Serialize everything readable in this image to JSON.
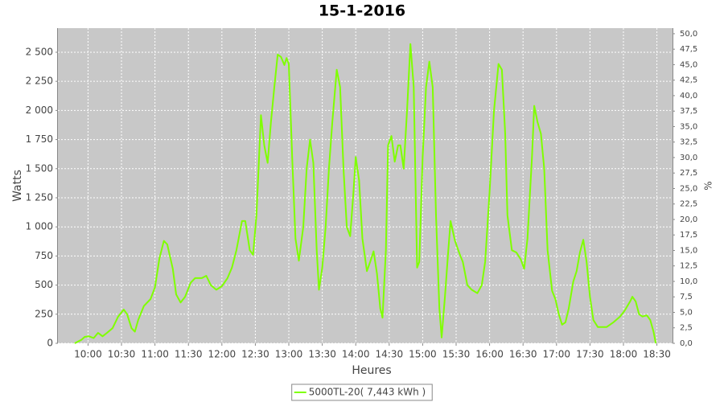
{
  "chart_data": {
    "type": "line",
    "title": "15-1-2016",
    "x_label": "Heures",
    "y_label": "Watts",
    "y2_label": "%",
    "x": [
      "09:48",
      "09:54",
      "09:57",
      "10:01",
      "10:05",
      "10:09",
      "10:13",
      "10:17",
      "10:22",
      "10:27",
      "10:32",
      "10:35",
      "10:39",
      "10:42",
      "10:45",
      "10:50",
      "10:56",
      "11:00",
      "11:04",
      "11:08",
      "11:11",
      "11:16",
      "11:19",
      "11:23",
      "11:27",
      "11:32",
      "11:36",
      "11:42",
      "11:46",
      "11:50",
      "11:55",
      "12:00",
      "12:05",
      "12:09",
      "12:13",
      "12:18",
      "12:21",
      "12:25",
      "12:28",
      "12:31",
      "12:35",
      "12:38",
      "12:41",
      "12:44",
      "12:47",
      "12:50",
      "12:53",
      "12:56",
      "12:58",
      "13:00",
      "13:03",
      "13:06",
      "13:09",
      "13:13",
      "13:16",
      "13:19",
      "13:22",
      "13:25",
      "13:27",
      "13:30",
      "13:33",
      "13:36",
      "13:39",
      "13:43",
      "13:46",
      "13:49",
      "13:52",
      "13:55",
      "13:58",
      "14:00",
      "14:03",
      "14:06",
      "14:10",
      "14:13",
      "14:16",
      "14:19",
      "14:22",
      "14:24",
      "14:27",
      "14:29",
      "14:32",
      "14:35",
      "14:38",
      "14:40",
      "14:43",
      "14:46",
      "14:49",
      "14:52",
      "14:55",
      "14:57",
      "15:00",
      "15:03",
      "15:06",
      "15:09",
      "15:12",
      "15:15",
      "15:17",
      "15:20",
      "15:23",
      "15:25",
      "15:29",
      "15:33",
      "15:36",
      "15:40",
      "15:44",
      "15:49",
      "15:53",
      "15:56",
      "16:00",
      "16:04",
      "16:08",
      "16:11",
      "16:14",
      "16:16",
      "16:20",
      "16:24",
      "16:28",
      "16:31",
      "16:34",
      "16:38",
      "16:40",
      "16:43",
      "16:46",
      "16:49",
      "16:52",
      "16:56",
      "16:59",
      "17:02",
      "17:05",
      "17:08",
      "17:11",
      "17:15",
      "17:18",
      "17:21",
      "17:24",
      "17:27",
      "17:30",
      "17:33",
      "17:37",
      "17:41",
      "17:45",
      "17:51",
      "17:57",
      "18:01",
      "18:06",
      "18:08",
      "18:11",
      "18:14",
      "18:17",
      "18:21",
      "18:24",
      "18:27",
      "18:29"
    ],
    "series": [
      {
        "name": "5000TL-20( 7,443 kWh )",
        "color": "#7fff00",
        "values": [
          0,
          30,
          55,
          60,
          45,
          90,
          60,
          90,
          130,
          230,
          290,
          250,
          130,
          100,
          200,
          320,
          380,
          480,
          730,
          880,
          850,
          640,
          420,
          350,
          400,
          520,
          560,
          560,
          580,
          500,
          460,
          490,
          560,
          650,
          800,
          1050,
          1050,
          800,
          760,
          1100,
          1960,
          1700,
          1550,
          1900,
          2200,
          2480,
          2460,
          2390,
          2450,
          2400,
          1600,
          900,
          710,
          1000,
          1500,
          1750,
          1550,
          800,
          460,
          650,
          1000,
          1500,
          1900,
          2350,
          2200,
          1500,
          1000,
          920,
          1300,
          1600,
          1400,
          900,
          620,
          700,
          790,
          600,
          300,
          220,
          800,
          1700,
          1780,
          1560,
          1700,
          1700,
          1500,
          2000,
          2570,
          2200,
          650,
          700,
          1600,
          2200,
          2420,
          2200,
          1100,
          300,
          50,
          400,
          800,
          1050,
          880,
          770,
          700,
          500,
          460,
          430,
          500,
          700,
          1300,
          2000,
          2400,
          2350,
          1800,
          1100,
          800,
          780,
          720,
          640,
          900,
          1600,
          2040,
          1900,
          1800,
          1500,
          800,
          450,
          380,
          250,
          160,
          180,
          300,
          530,
          620,
          780,
          890,
          700,
          400,
          200,
          140,
          140,
          140,
          180,
          230,
          280,
          360,
          400,
          360,
          250,
          230,
          240,
          200,
          100,
          0
        ]
      }
    ],
    "xlim": [
      "09:33",
      "18:44"
    ],
    "xticks": [
      "10:00",
      "10:30",
      "11:00",
      "11:30",
      "12:00",
      "12:30",
      "13:00",
      "13:30",
      "14:00",
      "14:30",
      "15:00",
      "15:30",
      "16:00",
      "16:30",
      "17:00",
      "17:30",
      "18:00",
      "18:30"
    ],
    "ylim": [
      0,
      2707
    ],
    "yticks": [
      0,
      250,
      500,
      750,
      {
        "value": 1000,
        "label": "1 000"
      },
      {
        "value": 1250,
        "label": "1 250"
      },
      {
        "value": 1500,
        "label": "1 500"
      },
      {
        "value": 1750,
        "label": "1 750"
      },
      {
        "value": 2000,
        "label": "2 000"
      },
      {
        "value": 2250,
        "label": "2 250"
      },
      {
        "value": 2500,
        "label": "2 500"
      }
    ],
    "y2lim": [
      0,
      50.9
    ],
    "y2ticks": [
      {
        "value": 0,
        "label": "0,0"
      },
      {
        "value": 2.5,
        "label": "2,5"
      },
      {
        "value": 5,
        "label": "5,0"
      },
      {
        "value": 7.5,
        "label": "7,5"
      },
      {
        "value": 10,
        "label": "10,0"
      },
      {
        "value": 12.5,
        "label": "12,5"
      },
      {
        "value": 15,
        "label": "15,0"
      },
      {
        "value": 17.5,
        "label": "17,5"
      },
      {
        "value": 20,
        "label": "20,0"
      },
      {
        "value": 22.5,
        "label": "22,5"
      },
      {
        "value": 25,
        "label": "25,0"
      },
      {
        "value": 27.5,
        "label": "27,5"
      },
      {
        "value": 30,
        "label": "30,0"
      },
      {
        "value": 32.5,
        "label": "32,5"
      },
      {
        "value": 35,
        "label": "35,0"
      },
      {
        "value": 37.5,
        "label": "37,5"
      },
      {
        "value": 40,
        "label": "40,0"
      },
      {
        "value": 42.5,
        "label": "42,5"
      },
      {
        "value": 45,
        "label": "45,0"
      },
      {
        "value": 47.5,
        "label": "47,5"
      },
      {
        "value": 50,
        "label": "50,0"
      }
    ],
    "grid": true,
    "plot_background": "#c8c8c8",
    "legend": "bottom"
  }
}
